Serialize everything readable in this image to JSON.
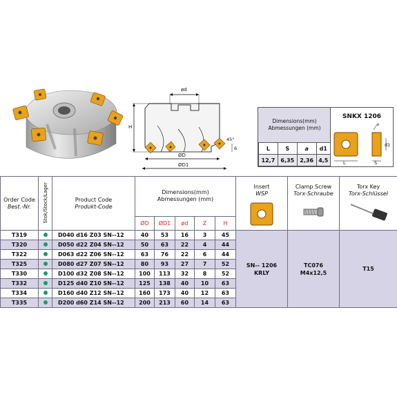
{
  "spec_box": {
    "title_line1": "Dimensions(mm)",
    "title_line2": "Abmessungen (mm)",
    "labels": [
      "L",
      "S",
      "a",
      "d1"
    ],
    "values": [
      "12,7",
      "6,35",
      "2,36",
      "4,5"
    ]
  },
  "insert_box": {
    "title": "SNKX 1206",
    "labels": {
      "a": "a",
      "d1": "d1",
      "L": "L",
      "S": "S"
    }
  },
  "drawing": {
    "d": "ød",
    "H": "H",
    "angle": "45°",
    "D": "ØD",
    "D1": "ØD1",
    "six": "6"
  },
  "table": {
    "headers": {
      "order_code": "Order Code",
      "order_code_de": "Best.-Nr.",
      "stock": "Stok/Stock/Lager",
      "product_code": "Product Code",
      "product_code_de": "Produkt-Code",
      "dimensions": "Dimensions(mm)",
      "dimensions_de": "Abmessungen (mm)",
      "cols": [
        "ØD",
        "ØD1",
        "ød",
        "Z",
        "H"
      ],
      "insert": "Insert",
      "insert_de": "WSP",
      "clamp": "Clamp Screw",
      "clamp_de": "Torx-Schraube",
      "torx": "Torx Key",
      "torx_de": "Torx-Schlüssel"
    },
    "rows": [
      {
        "order": "T319",
        "product": "D040 d16 Z03 SN--12",
        "D": "40",
        "D1": "53",
        "d": "16",
        "Z": "3",
        "H": "45"
      },
      {
        "order": "T320",
        "product": "D050 d22 Z04 SN--12",
        "D": "50",
        "D1": "63",
        "d": "22",
        "Z": "4",
        "H": "44"
      },
      {
        "order": "T322",
        "product": "D063 d22 Z06 SN--12",
        "D": "63",
        "D1": "76",
        "d": "22",
        "Z": "6",
        "H": "44"
      },
      {
        "order": "T325",
        "product": "D080 d27 Z07 SN--12",
        "D": "80",
        "D1": "93",
        "d": "27",
        "Z": "7",
        "H": "52"
      },
      {
        "order": "T330",
        "product": "D100 d32 Z08 SN--12",
        "D": "100",
        "D1": "113",
        "d": "32",
        "Z": "8",
        "H": "52"
      },
      {
        "order": "T332",
        "product": "D125 d40 Z10 SN--12",
        "D": "125",
        "D1": "138",
        "d": "40",
        "Z": "10",
        "H": "63"
      },
      {
        "order": "T334",
        "product": "D160 d40 Z12 SN--12",
        "D": "160",
        "D1": "173",
        "d": "40",
        "Z": "12",
        "H": "63"
      },
      {
        "order": "T335",
        "product": "D200 d60 Z14 SN--12",
        "D": "200",
        "D1": "213",
        "d": "60",
        "Z": "14",
        "H": "63"
      }
    ],
    "insert_value_1": "SN-- 1206",
    "insert_value_2": "KRLY",
    "clamp_value_1": "TC076",
    "clamp_value_2": "M4x12,5",
    "torx_value": "T15"
  },
  "colors": {
    "row_shade": "#d6d3e6",
    "header_red": "#d8232a",
    "stock_dot": "#1a9a6b",
    "insert_gold": "#e8a21b"
  }
}
